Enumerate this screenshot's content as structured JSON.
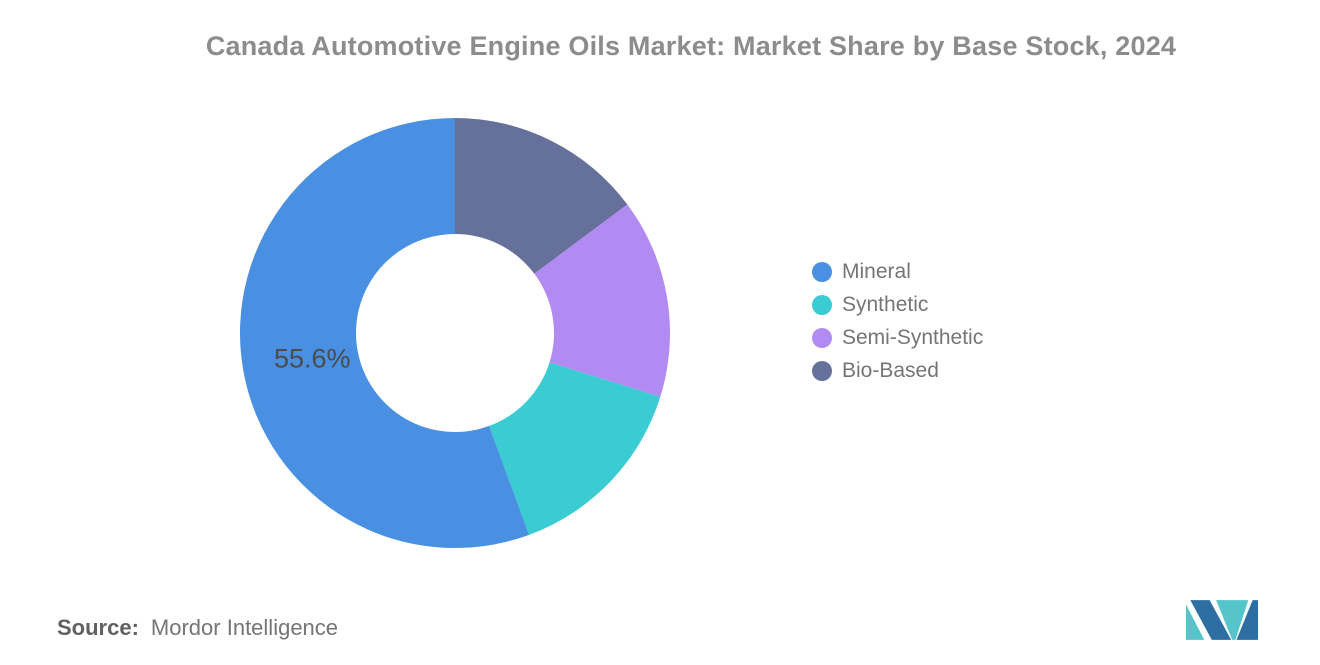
{
  "title": "Canada Automotive Engine Oils Market: Market Share by Base Stock, 2024",
  "source": {
    "prefix": "Source:",
    "text": "Mordor Intelligence"
  },
  "logo": {
    "icon": "mordor-intelligence-monogram",
    "navy": "#2E6FA3",
    "teal": "#55C5C9"
  },
  "chart_data": {
    "type": "pie",
    "donut": true,
    "title": "Canada Automotive Engine Oils Market: Market Share by Base Stock, 2024",
    "inner_radius_ratio": 0.46,
    "start_angle_deg": 0,
    "clockwise_order_from_top": [
      "Bio-Based",
      "Semi-Synthetic",
      "Synthetic",
      "Mineral"
    ],
    "legend_position": "right",
    "background": "#FFFFFF",
    "segments": [
      {
        "label": "Mineral",
        "value": 55.6,
        "display_label": "55.6%",
        "color": "#4A90E2"
      },
      {
        "label": "Synthetic",
        "value": 14.6,
        "display_label": "",
        "color": "#3BCBD2"
      },
      {
        "label": "Semi-Synthetic",
        "value": 15.0,
        "display_label": "",
        "color": "#B28BF2"
      },
      {
        "label": "Bio-Based",
        "value": 14.8,
        "display_label": "",
        "color": "#65719B"
      }
    ]
  }
}
